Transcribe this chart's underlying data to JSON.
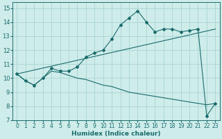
{
  "xlabel": "Humidex (Indice chaleur)",
  "background_color": "#ceecea",
  "grid_color": "#aed8d4",
  "line_color": "#1a6b6b",
  "xlim": [
    -0.5,
    23.5
  ],
  "ylim": [
    7,
    15.4
  ],
  "xticks": [
    0,
    1,
    2,
    3,
    4,
    5,
    6,
    7,
    8,
    9,
    10,
    11,
    12,
    13,
    14,
    15,
    16,
    17,
    18,
    19,
    20,
    21,
    22,
    23
  ],
  "yticks": [
    7,
    8,
    9,
    10,
    11,
    12,
    13,
    14,
    15
  ],
  "line1_x": [
    0,
    1,
    2,
    3,
    4,
    5,
    6,
    7,
    8,
    9,
    10,
    11,
    12,
    13,
    14,
    15,
    16,
    17,
    18,
    19,
    20,
    21,
    22,
    23
  ],
  "line1_y": [
    10.3,
    9.8,
    9.5,
    10.0,
    10.7,
    10.5,
    10.5,
    10.8,
    11.5,
    11.8,
    12.0,
    12.8,
    13.8,
    14.3,
    14.8,
    14.0,
    13.3,
    13.5,
    13.5,
    13.3,
    13.4,
    13.5,
    7.3,
    8.2
  ],
  "line2_x": [
    0,
    23
  ],
  "line2_y": [
    10.3,
    13.5
  ],
  "line3_x": [
    0,
    1,
    2,
    3,
    4,
    5,
    6,
    7,
    8,
    9,
    10,
    11,
    12,
    13,
    14,
    15,
    16,
    17,
    18,
    19,
    20,
    21,
    22,
    23
  ],
  "line3_y": [
    10.3,
    9.8,
    9.5,
    10.0,
    10.5,
    10.4,
    10.2,
    10.0,
    9.9,
    9.7,
    9.5,
    9.4,
    9.2,
    9.0,
    8.9,
    8.8,
    8.7,
    8.6,
    8.5,
    8.4,
    8.3,
    8.2,
    8.1,
    8.2
  ],
  "tick_fontsize": 5.5,
  "xlabel_fontsize": 6.5
}
